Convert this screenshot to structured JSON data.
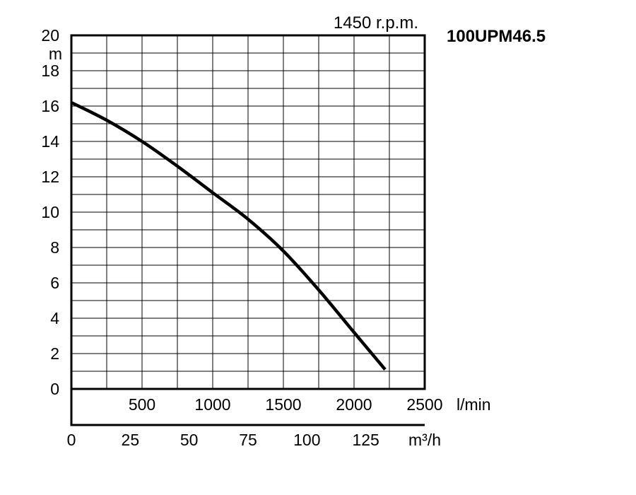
{
  "chart_data": {
    "type": "line",
    "title": "100UPM46.5",
    "subtitle": "1450 r.p.m.",
    "ylabel": "m",
    "ylim": [
      0,
      20
    ],
    "y_ticks": [
      "0",
      "2",
      "4",
      "6",
      "8",
      "10",
      "12",
      "14",
      "16",
      "18",
      "20"
    ],
    "xlim": [
      0,
      2500
    ],
    "x_ticks": [
      {
        "value": 500,
        "label": "500"
      },
      {
        "value": 1000,
        "label": "1000"
      },
      {
        "value": 1500,
        "label": "1500"
      },
      {
        "value": 2000,
        "label": "2000"
      },
      {
        "value": 2500,
        "label": "2500"
      }
    ],
    "xlabel": "l/min",
    "x2_unit_max": 150,
    "x2_ticks": [
      {
        "value": 0,
        "label": "0"
      },
      {
        "value": 25,
        "label": "25"
      },
      {
        "value": 50,
        "label": "50"
      },
      {
        "value": 75,
        "label": "75"
      },
      {
        "value": 100,
        "label": "100"
      },
      {
        "value": 125,
        "label": "125"
      }
    ],
    "x2label": "m³/h",
    "grid": true,
    "series": [
      {
        "x": [
          0,
          250,
          500,
          750,
          1000,
          1250,
          1500,
          1750,
          2000,
          2220
        ],
        "y": [
          16.2,
          15.2,
          14.0,
          12.6,
          11.1,
          9.6,
          7.8,
          5.6,
          3.2,
          1.1
        ]
      }
    ]
  }
}
